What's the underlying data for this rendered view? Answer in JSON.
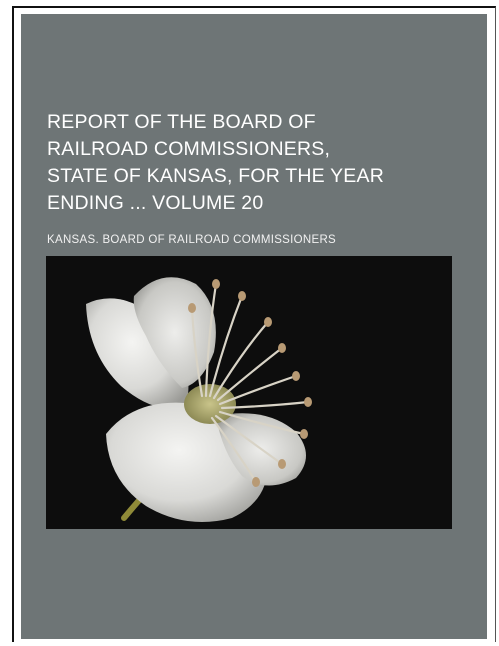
{
  "book": {
    "title_lines": [
      "REPORT OF THE BOARD OF",
      "RAILROAD COMMISSIONERS,",
      "STATE OF KANSAS, FOR THE YEAR",
      "ENDING ... VOLUME 20"
    ],
    "author": "KANSAS. BOARD OF RAILROAD COMMISSIONERS",
    "cover_image": "white-apple-blossom-flower-on-black",
    "colors": {
      "cover_background": "#6e7576",
      "title_text": "#ffffff",
      "image_background": "#0d0d0d"
    }
  }
}
